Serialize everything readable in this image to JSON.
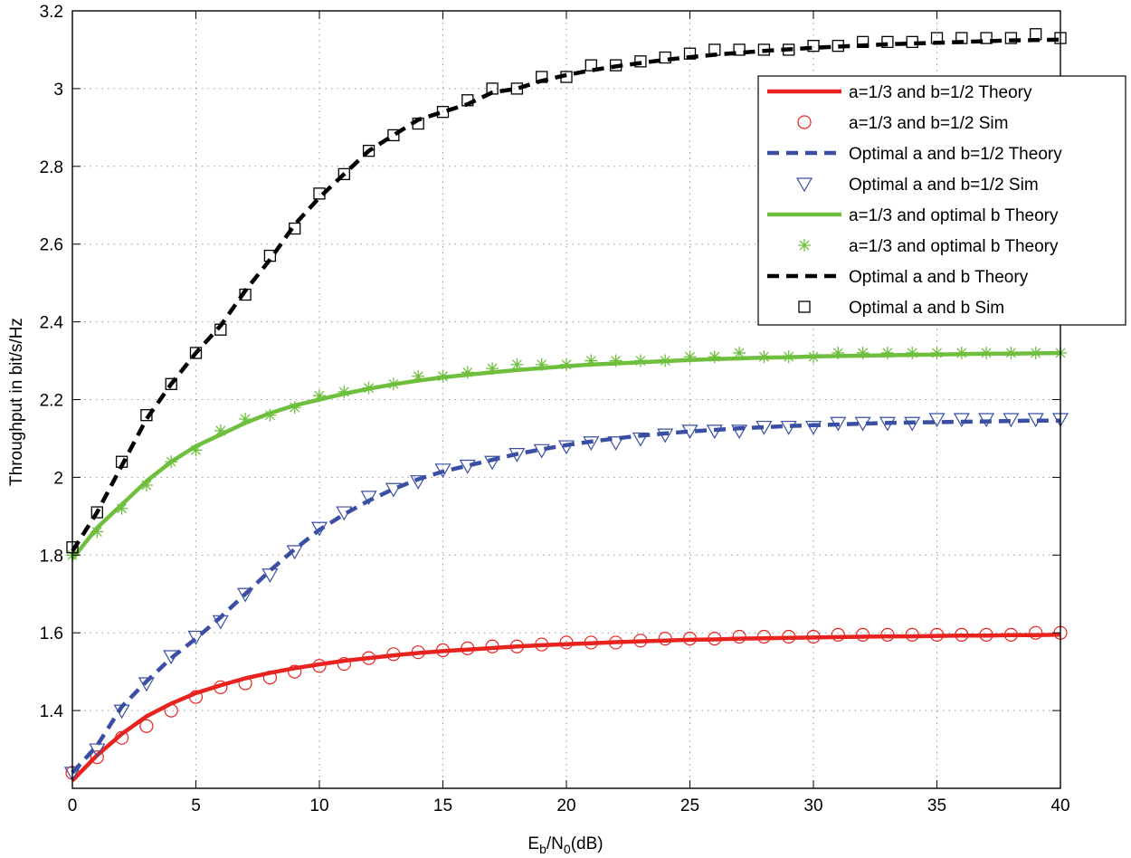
{
  "chart_data": {
    "type": "line",
    "title": "",
    "xlabel": {
      "main": "E",
      "sub1": "b",
      "mid": "/N",
      "sub2": "0",
      "tail": "(dB)"
    },
    "ylabel": "Throughput in bit/s/Hz",
    "xlim": [
      0,
      40
    ],
    "ylim": [
      1.2,
      3.2
    ],
    "xticks": [
      0,
      5,
      10,
      15,
      20,
      25,
      30,
      35,
      40
    ],
    "xtick_labels": [
      "0",
      "5",
      "10",
      "15",
      "20",
      "25",
      "30",
      "35",
      "40"
    ],
    "yticks": [
      1.4,
      1.6,
      1.8,
      2.0,
      2.2,
      2.4,
      2.6,
      2.8,
      3.0,
      3.2
    ],
    "ytick_labels": [
      "1.4",
      "1.6",
      "1.8",
      "2",
      "2.2",
      "2.4",
      "2.6",
      "2.8",
      "3",
      "3.2"
    ],
    "grid": true,
    "legend_position": "top-right",
    "x": [
      0,
      1,
      2,
      3,
      4,
      5,
      6,
      7,
      8,
      9,
      10,
      11,
      12,
      13,
      14,
      15,
      16,
      17,
      18,
      19,
      20,
      21,
      22,
      23,
      24,
      25,
      26,
      27,
      28,
      29,
      30,
      31,
      32,
      33,
      34,
      35,
      36,
      37,
      38,
      39,
      40
    ],
    "series": [
      {
        "name": "a=1/3 and b=1/2 Theory",
        "style": "solid",
        "marker": "none",
        "color": "#e8231f",
        "values": [
          1.22,
          1.285,
          1.34,
          1.385,
          1.418,
          1.445,
          1.465,
          1.483,
          1.497,
          1.509,
          1.519,
          1.528,
          1.535,
          1.542,
          1.548,
          1.553,
          1.557,
          1.561,
          1.565,
          1.568,
          1.571,
          1.573,
          1.576,
          1.578,
          1.58,
          1.582,
          1.583,
          1.585,
          1.586,
          1.587,
          1.588,
          1.589,
          1.59,
          1.591,
          1.591,
          1.592,
          1.593,
          1.593,
          1.594,
          1.594,
          1.595
        ]
      },
      {
        "name": "a=1/3 and b=1/2 Sim",
        "style": "none",
        "marker": "circle",
        "color": "#e8231f",
        "values": [
          1.24,
          1.28,
          1.33,
          1.36,
          1.4,
          1.435,
          1.46,
          1.47,
          1.485,
          1.5,
          1.515,
          1.52,
          1.535,
          1.545,
          1.55,
          1.555,
          1.56,
          1.565,
          1.565,
          1.57,
          1.575,
          1.575,
          1.575,
          1.58,
          1.585,
          1.585,
          1.585,
          1.59,
          1.59,
          1.59,
          1.59,
          1.595,
          1.595,
          1.595,
          1.595,
          1.595,
          1.595,
          1.595,
          1.595,
          1.6,
          1.6
        ]
      },
      {
        "name": "Optimal a and b=1/2 Theory",
        "style": "dashed",
        "marker": "none",
        "color": "#3a4fa3",
        "values": [
          1.24,
          1.31,
          1.41,
          1.475,
          1.535,
          1.585,
          1.64,
          1.7,
          1.76,
          1.815,
          1.865,
          1.905,
          1.94,
          1.97,
          1.995,
          2.015,
          2.03,
          2.045,
          2.06,
          2.072,
          2.083,
          2.092,
          2.1,
          2.107,
          2.113,
          2.118,
          2.122,
          2.126,
          2.129,
          2.132,
          2.134,
          2.136,
          2.138,
          2.14,
          2.141,
          2.142,
          2.143,
          2.144,
          2.145,
          2.146,
          2.146
        ]
      },
      {
        "name": "Optimal a and b=1/2 Sim",
        "style": "none",
        "marker": "triangle-down",
        "color": "#3a4fa3",
        "values": [
          1.24,
          1.3,
          1.4,
          1.47,
          1.54,
          1.59,
          1.63,
          1.7,
          1.75,
          1.81,
          1.87,
          1.91,
          1.95,
          1.97,
          1.99,
          2.02,
          2.03,
          2.04,
          2.06,
          2.07,
          2.08,
          2.09,
          2.09,
          2.1,
          2.11,
          2.12,
          2.12,
          2.12,
          2.13,
          2.13,
          2.13,
          2.14,
          2.14,
          2.14,
          2.14,
          2.15,
          2.15,
          2.15,
          2.15,
          2.15,
          2.15
        ]
      },
      {
        "name": "a=1/3 and optimal b Theory",
        "style": "solid",
        "marker": "none",
        "color": "#6fbf3f",
        "values": [
          1.79,
          1.87,
          1.93,
          1.99,
          2.04,
          2.08,
          2.11,
          2.14,
          2.165,
          2.185,
          2.2,
          2.215,
          2.228,
          2.239,
          2.249,
          2.257,
          2.264,
          2.27,
          2.276,
          2.281,
          2.286,
          2.29,
          2.293,
          2.296,
          2.299,
          2.302,
          2.304,
          2.306,
          2.308,
          2.309,
          2.311,
          2.312,
          2.313,
          2.314,
          2.315,
          2.316,
          2.317,
          2.318,
          2.318,
          2.319,
          2.32
        ]
      },
      {
        "name": "a=1/3 and optimal b Theory",
        "style": "none",
        "marker": "asterisk",
        "color": "#6fbf3f",
        "values": [
          1.8,
          1.86,
          1.92,
          1.98,
          2.04,
          2.07,
          2.12,
          2.15,
          2.16,
          2.18,
          2.21,
          2.22,
          2.23,
          2.24,
          2.26,
          2.26,
          2.27,
          2.28,
          2.29,
          2.29,
          2.29,
          2.3,
          2.3,
          2.3,
          2.3,
          2.31,
          2.31,
          2.32,
          2.31,
          2.31,
          2.31,
          2.32,
          2.32,
          2.32,
          2.32,
          2.32,
          2.32,
          2.32,
          2.32,
          2.32,
          2.32
        ]
      },
      {
        "name": "Optimal a and b Theory",
        "style": "dashed",
        "marker": "none",
        "color": "#000000",
        "values": [
          1.81,
          1.91,
          2.03,
          2.15,
          2.24,
          2.32,
          2.39,
          2.48,
          2.56,
          2.65,
          2.72,
          2.78,
          2.84,
          2.88,
          2.92,
          2.94,
          2.96,
          2.99,
          3.0,
          3.02,
          3.035,
          3.047,
          3.057,
          3.066,
          3.074,
          3.081,
          3.087,
          3.092,
          3.097,
          3.101,
          3.105,
          3.108,
          3.111,
          3.114,
          3.116,
          3.118,
          3.12,
          3.122,
          3.124,
          3.125,
          3.126
        ]
      },
      {
        "name": "Optimal a and b Sim",
        "style": "none",
        "marker": "square",
        "color": "#000000",
        "values": [
          1.82,
          1.91,
          2.04,
          2.16,
          2.24,
          2.32,
          2.38,
          2.47,
          2.57,
          2.64,
          2.73,
          2.78,
          2.84,
          2.88,
          2.91,
          2.94,
          2.97,
          3.0,
          3.0,
          3.03,
          3.03,
          3.06,
          3.06,
          3.07,
          3.08,
          3.09,
          3.1,
          3.1,
          3.1,
          3.1,
          3.11,
          3.11,
          3.12,
          3.12,
          3.12,
          3.13,
          3.13,
          3.13,
          3.13,
          3.14,
          3.13
        ]
      }
    ]
  }
}
